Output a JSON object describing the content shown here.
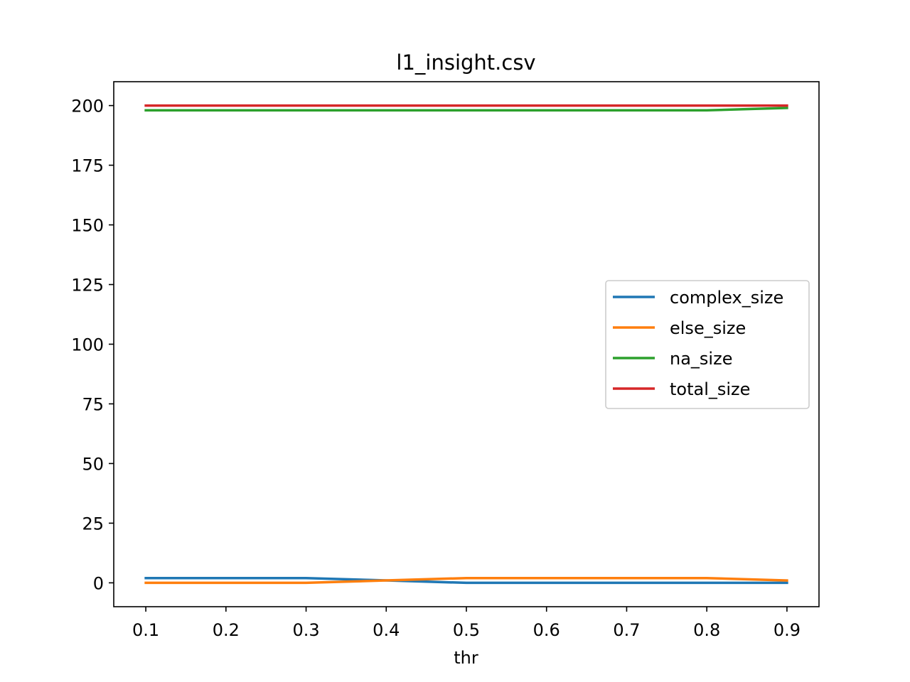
{
  "chart_data": {
    "type": "line",
    "title": "l1_insight.csv",
    "xlabel": "thr",
    "ylabel": "",
    "x": [
      0.1,
      0.2,
      0.3,
      0.4,
      0.5,
      0.6,
      0.7,
      0.8,
      0.9
    ],
    "xticks": [
      "0.1",
      "0.2",
      "0.3",
      "0.4",
      "0.5",
      "0.6",
      "0.7",
      "0.8",
      "0.9"
    ],
    "yticks": [
      "0",
      "25",
      "50",
      "75",
      "100",
      "125",
      "150",
      "175",
      "200"
    ],
    "xlim": [
      0.06,
      0.94
    ],
    "ylim": [
      -10,
      210
    ],
    "grid": false,
    "legend_position": "center-right",
    "series": [
      {
        "name": "complex_size",
        "color": "#1f77b4",
        "values": [
          2,
          2,
          2,
          1,
          0,
          0,
          0,
          0,
          0
        ]
      },
      {
        "name": "else_size",
        "color": "#ff7f0e",
        "values": [
          0,
          0,
          0,
          1,
          2,
          2,
          2,
          2,
          1
        ]
      },
      {
        "name": "na_size",
        "color": "#2ca02c",
        "values": [
          198,
          198,
          198,
          198,
          198,
          198,
          198,
          198,
          199
        ]
      },
      {
        "name": "total_size",
        "color": "#d62728",
        "values": [
          200,
          200,
          200,
          200,
          200,
          200,
          200,
          200,
          200
        ]
      }
    ]
  }
}
